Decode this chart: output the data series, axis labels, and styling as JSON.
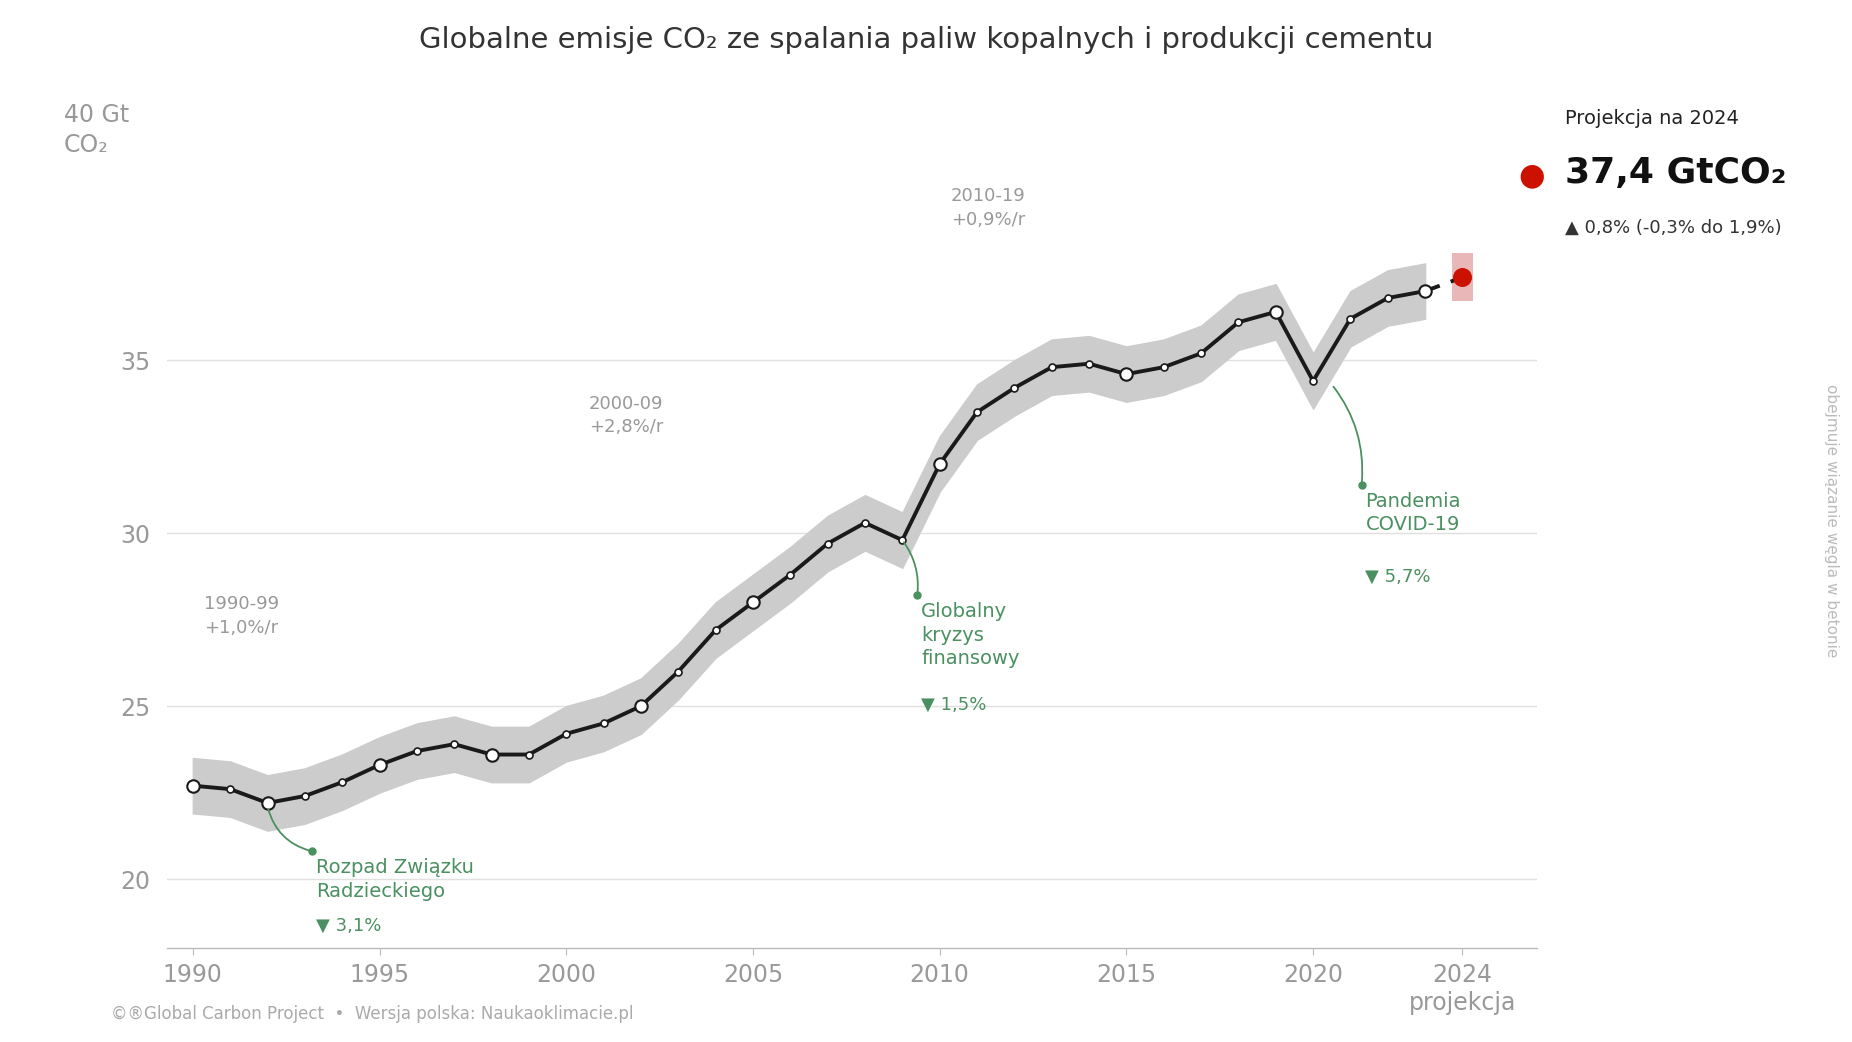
{
  "title": "Globalne emisje CO₂ ze spalania paliw kopalnych i produkcji cementu",
  "years": [
    1990,
    1991,
    1992,
    1993,
    1994,
    1995,
    1996,
    1997,
    1998,
    1999,
    2000,
    2001,
    2002,
    2003,
    2004,
    2005,
    2006,
    2007,
    2008,
    2009,
    2010,
    2011,
    2012,
    2013,
    2014,
    2015,
    2016,
    2017,
    2018,
    2019,
    2020,
    2021,
    2022,
    2023,
    2024
  ],
  "values": [
    22.7,
    22.6,
    22.2,
    22.4,
    22.8,
    23.3,
    23.7,
    23.9,
    23.6,
    23.6,
    24.2,
    24.5,
    25.0,
    26.0,
    27.2,
    28.0,
    28.8,
    29.7,
    30.3,
    29.8,
    32.0,
    33.5,
    34.2,
    34.8,
    34.9,
    34.6,
    34.8,
    35.2,
    36.1,
    36.4,
    34.4,
    36.2,
    36.8,
    37.0,
    37.4
  ],
  "uncertainty_upper": [
    23.5,
    23.4,
    23.0,
    23.2,
    23.6,
    24.1,
    24.5,
    24.7,
    24.4,
    24.4,
    25.0,
    25.3,
    25.8,
    26.8,
    28.0,
    28.8,
    29.6,
    30.5,
    31.1,
    30.6,
    32.8,
    34.3,
    35.0,
    35.6,
    35.7,
    35.4,
    35.6,
    36.0,
    36.9,
    37.2,
    35.2,
    37.0,
    37.6,
    37.8,
    38.1
  ],
  "uncertainty_lower": [
    21.9,
    21.8,
    21.4,
    21.6,
    22.0,
    22.5,
    22.9,
    23.1,
    22.8,
    22.8,
    23.4,
    23.7,
    24.2,
    25.2,
    26.4,
    27.2,
    28.0,
    28.9,
    29.5,
    29.0,
    31.2,
    32.7,
    33.4,
    34.0,
    34.1,
    33.8,
    34.0,
    34.4,
    35.3,
    35.6,
    33.6,
    35.4,
    36.0,
    36.2,
    36.7
  ],
  "projection_year": 2024,
  "projection_value": 37.4,
  "projection_bar_upper": 38.1,
  "projection_bar_lower": 36.7,
  "yticks": [
    20,
    25,
    30,
    35
  ],
  "xticks": [
    1990,
    1995,
    2000,
    2005,
    2010,
    2015,
    2020,
    2024
  ],
  "xticklabels": [
    "1990",
    "1995",
    "2000",
    "2005",
    "2010",
    "2015",
    "2020",
    "2024\nprojekcja"
  ],
  "xlim": [
    1989.3,
    2026.0
  ],
  "ylim": [
    18.0,
    41.5
  ],
  "line_color": "#1a1a1a",
  "band_color": "#cccccc",
  "projection_band_color": "#e8b8b8",
  "dot_color": "#ffffff",
  "dot_edgecolor": "#1a1a1a",
  "red_dot_color": "#cc1100",
  "green_color": "#4a9060",
  "gray_color": "#999999",
  "dark_color": "#555555",
  "footer_text": "©®Global Carbon Project  •  Wersja polska: Naukaoklimacie.pl",
  "side_text": "obejmuje wiązanie węgla w betonie",
  "background_color": "#ffffff",
  "grid_color": "#e0e0e0"
}
